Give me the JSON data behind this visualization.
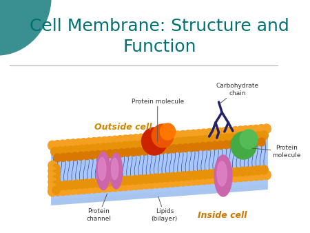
{
  "title_line1": "Cell Membrane: Structure and",
  "title_line2": "Function",
  "title_color": "#007070",
  "title_fontsize": 18,
  "bg_color": "#ffffff",
  "teal_color": "#3a9090",
  "separator_color": "#aaaaaa",
  "outside_cell_label": "Outside cell",
  "inside_cell_label": "Inside cell",
  "outside_label_color": "#cc8800",
  "inside_label_color": "#cc7700",
  "label_color": "#333333",
  "label_fontsize": 6.5,
  "orange_color1": "#f5a020",
  "orange_color2": "#e8920a",
  "orange_color3": "#d97800",
  "blue_bilayer": "#88aadd",
  "blue_dark": "#4466bb",
  "purple_protein": "#cc66aa",
  "purple_light": "#e088cc",
  "red_protein1": "#cc2200",
  "red_protein2": "#ee5500",
  "orange_protein": "#ff7700",
  "green_protein": "#44aa44",
  "carbo_color": "#222266",
  "annotation_color": "#333333",
  "arrow_color": "#555555"
}
